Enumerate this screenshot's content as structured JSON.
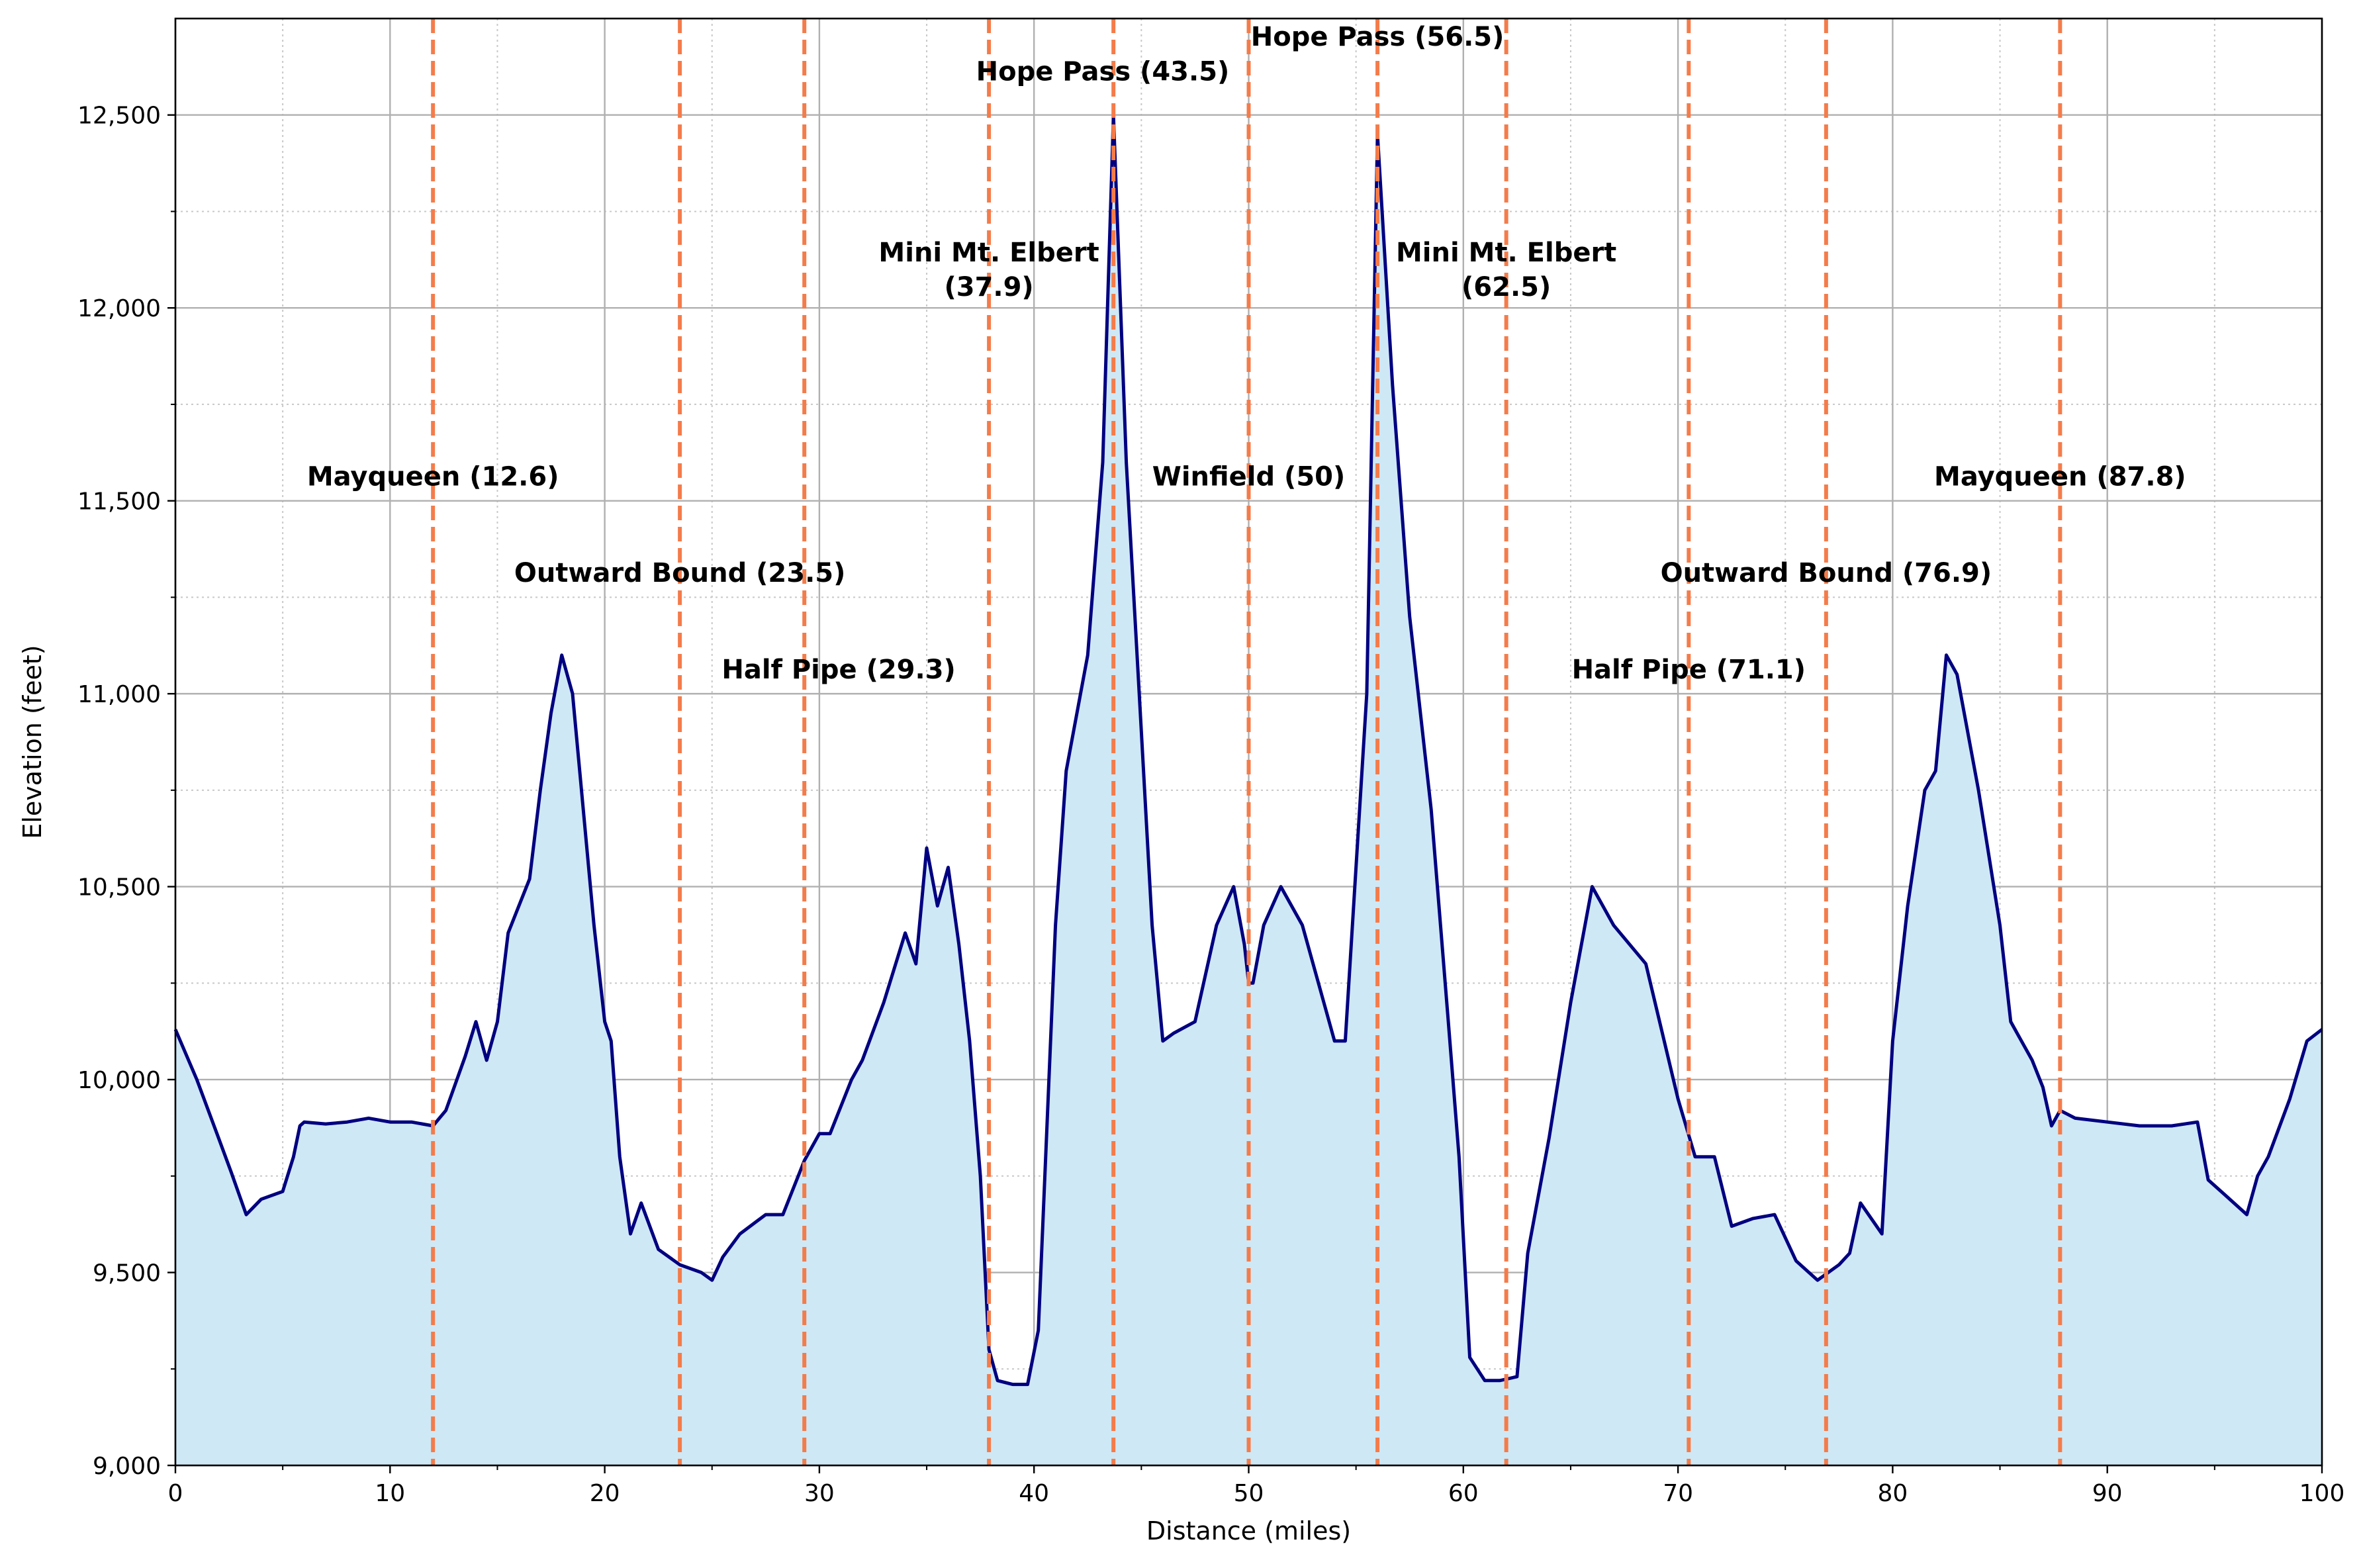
{
  "chart_data": {
    "type": "area",
    "title": "",
    "xlabel": "Distance (miles)",
    "ylabel": "Elevation (feet)",
    "xlim": [
      0,
      100
    ],
    "ylim": [
      9000,
      12750
    ],
    "x_ticks": [
      0,
      10,
      20,
      30,
      40,
      50,
      60,
      70,
      80,
      90,
      100
    ],
    "x_tick_labels": [
      "0",
      "10",
      "20",
      "30",
      "40",
      "50",
      "60",
      "70",
      "80",
      "90",
      "100"
    ],
    "y_ticks": [
      9000,
      9500,
      10000,
      10500,
      11000,
      11500,
      12000,
      12500
    ],
    "y_tick_labels": [
      "9,000",
      "9,500",
      "10,000",
      "10,500",
      "11,000",
      "11,500",
      "12,000",
      "12,500"
    ],
    "grid": "major solid, minor dotted",
    "line_color": "#000080",
    "fill_color": "#cfe8f5",
    "marker_color": "#f47c4a",
    "series": [
      {
        "x": [
          0,
          1,
          2,
          2.6,
          3.3,
          4,
          5,
          5.5,
          5.8,
          6,
          7,
          8,
          9,
          10,
          11,
          12,
          12.6,
          13.5,
          14,
          14.5,
          15,
          15.5,
          16,
          16.5,
          17,
          17.5,
          18,
          18.5,
          19,
          19.5,
          20,
          20.3,
          20.7,
          21.2,
          21.7,
          22.5,
          23.5,
          24.5,
          25,
          25.5,
          26.3,
          27.5,
          28.3,
          29.3,
          30,
          30.5,
          31.5,
          32,
          33,
          34,
          34.5,
          35,
          35.5,
          36,
          36.5,
          37,
          37.5,
          37.9,
          38.3,
          39,
          39.7,
          40.2,
          41,
          41.5,
          42.5,
          43.2,
          43.7,
          44.3,
          45,
          45.5,
          46,
          46.5,
          47.5,
          48.5,
          49.3,
          49.8,
          50,
          50.2,
          50.7,
          51.5,
          52.5,
          53.5,
          54,
          54.5,
          55.5,
          56,
          56.7,
          57.5,
          58.5,
          59.3,
          59.8,
          60.3,
          61,
          61.7,
          62.5,
          63,
          64,
          65,
          66,
          67,
          68.5,
          70,
          70.8,
          71.7,
          72.5,
          73.5,
          74.5,
          75.5,
          76.5,
          77.5,
          78,
          78.5,
          79.5,
          80,
          80.7,
          81.5,
          82,
          82.5,
          83,
          84,
          85,
          85.5,
          86,
          86.5,
          87,
          87.4,
          87.8,
          88.5,
          90,
          91.5,
          93,
          94.2,
          94.7,
          95.5,
          96.5,
          97,
          97.5,
          98.5,
          99.3,
          100
        ],
        "y": [
          10130,
          10000,
          9850,
          9760,
          9650,
          9690,
          9710,
          9800,
          9880,
          9890,
          9885,
          9890,
          9900,
          9890,
          9890,
          9880,
          9920,
          10060,
          10150,
          10050,
          10150,
          10380,
          10450,
          10520,
          10750,
          10950,
          11100,
          11000,
          10700,
          10400,
          10150,
          10100,
          9800,
          9600,
          9680,
          9560,
          9520,
          9500,
          9480,
          9540,
          9600,
          9650,
          9650,
          9790,
          9860,
          9860,
          10000,
          10050,
          10200,
          10380,
          10300,
          10600,
          10450,
          10550,
          10350,
          10100,
          9750,
          9300,
          9220,
          9210,
          9210,
          9350,
          10400,
          10800,
          11100,
          11600,
          12500,
          11600,
          10900,
          10400,
          10100,
          10120,
          10150,
          10400,
          10500,
          10350,
          10250,
          10250,
          10400,
          10500,
          10400,
          10200,
          10100,
          10100,
          11000,
          12450,
          11800,
          11200,
          10700,
          10150,
          9800,
          9280,
          9220,
          9220,
          9230,
          9550,
          9850,
          10200,
          10500,
          10400,
          10300,
          9950,
          9800,
          9800,
          9620,
          9640,
          9650,
          9530,
          9480,
          9520,
          9550,
          9680,
          9600,
          10100,
          10450,
          10750,
          10800,
          11100,
          11050,
          10750,
          10400,
          10150,
          10100,
          10050,
          9980,
          9880,
          9920,
          9900,
          9890,
          9880,
          9880,
          9890,
          9740,
          9700,
          9650,
          9750,
          9800,
          9950,
          10100,
          10130
        ]
      }
    ],
    "markers": [
      {
        "x": 12,
        "label": "Mayqueen (12.6)",
        "label_x": 12,
        "label_y": 11540
      },
      {
        "x": 23.5,
        "label": "Outward Bound (23.5)",
        "label_x": 23.5,
        "label_y": 11290
      },
      {
        "x": 29.3,
        "label": "Half Pipe (29.3)",
        "label_x": 30.9,
        "label_y": 11040
      },
      {
        "x": 37.9,
        "label": "Mini Mt. Elbert",
        "label_line2": "(37.9)",
        "label_x": 37.9,
        "label_y": 12120
      },
      {
        "x": 43.7,
        "label": "Hope Pass (43.5)",
        "label_x": 43.2,
        "label_y": 12590
      },
      {
        "x": 50,
        "label": "Winfield (50)",
        "label_x": 50,
        "label_y": 11540
      },
      {
        "x": 56,
        "label": "Hope Pass (56.5)",
        "label_x": 56,
        "label_y": 12680
      },
      {
        "x": 62,
        "label": "Mini Mt. Elbert",
        "label_line2": "(62.5)",
        "label_x": 62,
        "label_y": 12120
      },
      {
        "x": 70.5,
        "label": "Half Pipe (71.1)",
        "label_x": 70.5,
        "label_y": 11040
      },
      {
        "x": 76.9,
        "label": "Outward Bound (76.9)",
        "label_x": 76.9,
        "label_y": 11290
      },
      {
        "x": 87.8,
        "label": "Mayqueen (87.8)",
        "label_x": 87.8,
        "label_y": 11540
      }
    ]
  }
}
